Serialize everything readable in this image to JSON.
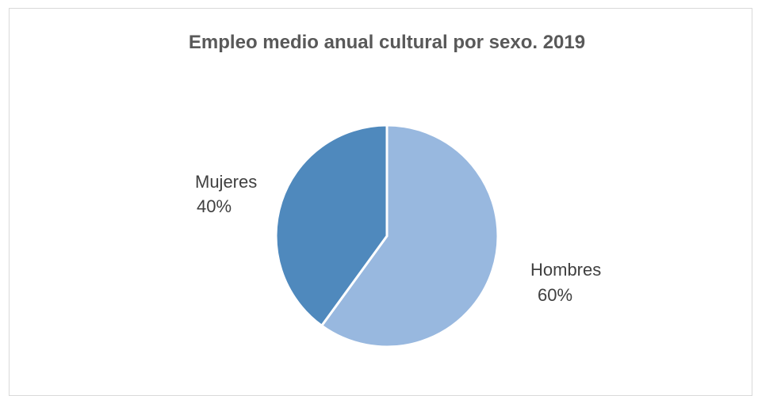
{
  "chart_data": {
    "type": "pie",
    "title": "Empleo medio anual cultural por sexo. 2019",
    "slices": [
      {
        "name": "Hombres",
        "value": 60,
        "value_label": "60%",
        "color": "#98b8df"
      },
      {
        "name": "Mujeres",
        "value": 40,
        "value_label": "40%",
        "color": "#4f89bd"
      }
    ],
    "slice_border_color": "#ffffff",
    "legend": "none",
    "data_labels": "outside"
  }
}
